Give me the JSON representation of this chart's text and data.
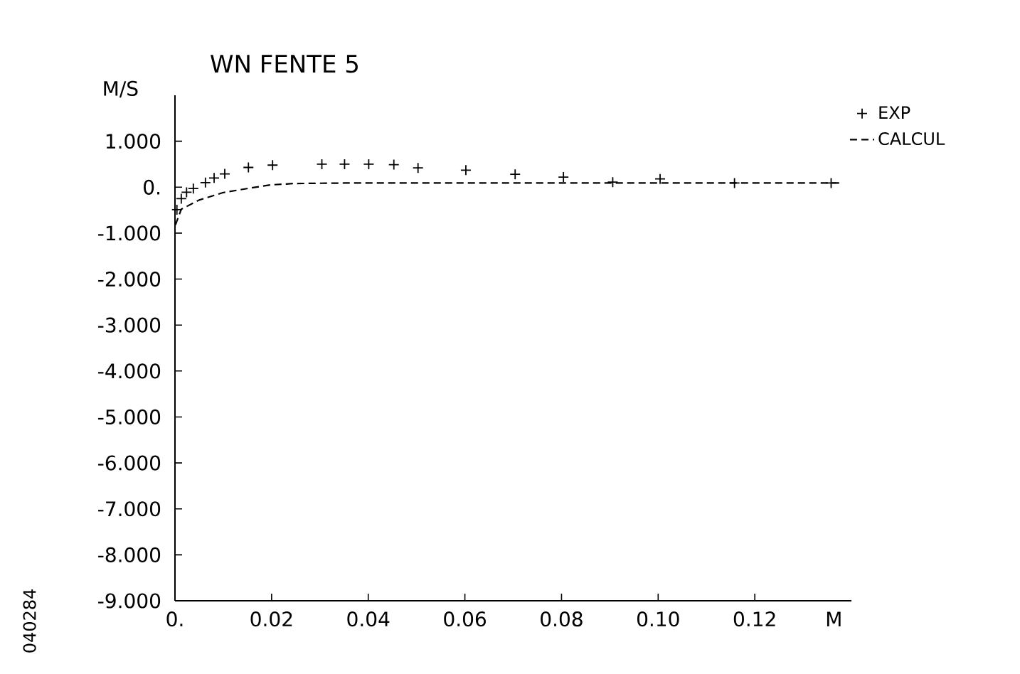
{
  "chart_data": {
    "type": "scatter",
    "title": "WN FENTE 5",
    "xlabel": "M",
    "ylabel": "M/S",
    "annotations": [
      "040284"
    ],
    "xlim": [
      0,
      0.14
    ],
    "ylim": [
      -9,
      2
    ],
    "xticks": [
      {
        "value": 0,
        "label": "0."
      },
      {
        "value": 0.02,
        "label": "0.02"
      },
      {
        "value": 0.04,
        "label": "0.04"
      },
      {
        "value": 0.06,
        "label": "0.06"
      },
      {
        "value": 0.08,
        "label": "0.08"
      },
      {
        "value": 0.1,
        "label": "0.10"
      },
      {
        "value": 0.12,
        "label": "0.12"
      }
    ],
    "yticks": [
      {
        "value": 1,
        "label": "1.000"
      },
      {
        "value": 0,
        "label": "0."
      },
      {
        "value": -1,
        "label": "-1.000"
      },
      {
        "value": -2,
        "label": "-2.000"
      },
      {
        "value": -3,
        "label": "-3.000"
      },
      {
        "value": -4,
        "label": "-4.000"
      },
      {
        "value": -5,
        "label": "-5.000"
      },
      {
        "value": -6,
        "label": "-6.000"
      },
      {
        "value": -7,
        "label": "-7.000"
      },
      {
        "value": -8,
        "label": "-8.000"
      },
      {
        "value": -9,
        "label": "-9.000"
      }
    ],
    "grid": false,
    "legend": "top right",
    "series": [
      {
        "name": "EXP",
        "marker": "cross",
        "color": "#000000",
        "x": [
          0.0004,
          0.0013,
          0.0024,
          0.0038,
          0.0063,
          0.0081,
          0.0103,
          0.0152,
          0.0202,
          0.0304,
          0.0351,
          0.0401,
          0.0453,
          0.0503,
          0.0602,
          0.0704,
          0.0804,
          0.0906,
          0.1004,
          0.1158,
          0.1358
        ],
        "values": [
          -0.49,
          -0.25,
          -0.11,
          -0.03,
          0.1,
          0.2,
          0.29,
          0.43,
          0.48,
          0.5,
          0.5,
          0.5,
          0.49,
          0.42,
          0.37,
          0.28,
          0.22,
          0.11,
          0.18,
          0.09,
          0.09
        ]
      },
      {
        "name": "CALCUL",
        "type": "line",
        "line_style": "dashed",
        "color": "#000000",
        "x": [
          0.0001,
          0.0013,
          0.005,
          0.0099,
          0.0149,
          0.0198,
          0.0246,
          0.035,
          0.138
        ],
        "values": [
          -0.82,
          -0.48,
          -0.28,
          -0.12,
          -0.03,
          0.05,
          0.08,
          0.09,
          0.09
        ]
      }
    ]
  }
}
